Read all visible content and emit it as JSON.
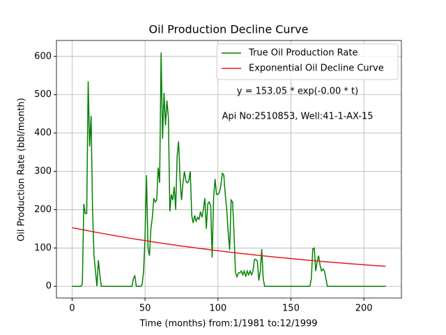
{
  "chart_data": {
    "type": "line",
    "title": "Oil Production Decline Curve",
    "xlabel": "Time (months) from:1/1981 to:12/1999",
    "ylabel": "Oil Production Rate (bbl/month)",
    "annotations": [
      "y = 153.05 * exp(-0.00 * t)",
      "Api No:2510853, Well:41-1-AX-15"
    ],
    "xlim": [
      -10.75,
      225.75
    ],
    "xticks": [
      0,
      50,
      100,
      150,
      200
    ],
    "ylim": [
      -30.55,
      641.55
    ],
    "yticks": [
      0,
      100,
      200,
      300,
      400,
      500,
      600
    ],
    "grid": true,
    "legend": "upper right",
    "series": [
      {
        "name": "True Oil Production Rate",
        "color": "#008000",
        "x": [
          0,
          1,
          2,
          3,
          4,
          5,
          6,
          7,
          8,
          9,
          10,
          11,
          12,
          13,
          14,
          15,
          16,
          17,
          18,
          19,
          20,
          21,
          22,
          23,
          24,
          25,
          26,
          27,
          28,
          29,
          30,
          31,
          32,
          33,
          34,
          35,
          36,
          37,
          38,
          39,
          40,
          41,
          42,
          43,
          44,
          45,
          46,
          47,
          48,
          49,
          50,
          51,
          52,
          53,
          54,
          55,
          56,
          57,
          58,
          59,
          60,
          61,
          62,
          63,
          64,
          65,
          66,
          67,
          68,
          69,
          70,
          71,
          72,
          73,
          74,
          75,
          76,
          77,
          78,
          79,
          80,
          81,
          82,
          83,
          84,
          85,
          86,
          87,
          88,
          89,
          90,
          91,
          92,
          93,
          94,
          95,
          96,
          97,
          98,
          99,
          100,
          101,
          102,
          103,
          104,
          105,
          106,
          107,
          108,
          109,
          110,
          111,
          112,
          113,
          114,
          115,
          116,
          117,
          118,
          119,
          120,
          121,
          122,
          123,
          124,
          125,
          126,
          127,
          128,
          129,
          130,
          131,
          132,
          133,
          134,
          135,
          136,
          137,
          138,
          139,
          140,
          141,
          142,
          143,
          144,
          145,
          146,
          147,
          148,
          149,
          150,
          151,
          152,
          153,
          154,
          155,
          156,
          157,
          158,
          159,
          160,
          161,
          162,
          163,
          164,
          165,
          166,
          167,
          168,
          169,
          170,
          171,
          172,
          173,
          174,
          175,
          176,
          177,
          178,
          179,
          180,
          181,
          182,
          183,
          184,
          185,
          186,
          187,
          188,
          189,
          190,
          191,
          192,
          193,
          194,
          195,
          196,
          197,
          198,
          199,
          200,
          201,
          202,
          203,
          204,
          205,
          206,
          207,
          208,
          209,
          210,
          211,
          212,
          213,
          214,
          215
        ],
        "values": [
          0,
          0,
          0,
          0,
          0,
          0,
          0,
          5,
          215,
          190,
          190,
          535,
          365,
          445,
          200,
          80,
          40,
          0,
          68,
          30,
          0,
          0,
          0,
          0,
          0,
          0,
          0,
          0,
          0,
          0,
          0,
          0,
          0,
          0,
          0,
          0,
          0,
          0,
          0,
          0,
          0,
          0,
          20,
          27,
          0,
          0,
          0,
          0,
          5,
          40,
          130,
          290,
          100,
          80,
          150,
          180,
          230,
          220,
          225,
          310,
          270,
          610,
          385,
          505,
          420,
          485,
          440,
          195,
          240,
          225,
          260,
          200,
          340,
          378,
          280,
          225,
          270,
          300,
          275,
          270,
          275,
          300,
          185,
          165,
          185,
          170,
          180,
          175,
          195,
          180,
          200,
          230,
          150,
          215,
          220,
          210,
          75,
          230,
          280,
          240,
          240,
          245,
          265,
          295,
          290,
          240,
          200,
          140,
          95,
          225,
          220,
          140,
          35,
          25,
          35,
          35,
          40,
          30,
          40,
          25,
          40,
          30,
          40,
          30,
          40,
          70,
          70,
          65,
          15,
          40,
          97,
          20,
          0,
          0,
          0,
          0,
          0,
          0,
          0,
          0,
          0,
          0,
          0,
          0,
          0,
          0,
          0,
          0,
          0,
          0,
          0,
          0,
          0,
          0,
          0,
          0,
          0,
          0,
          0,
          0,
          0,
          0,
          0,
          0,
          20,
          98,
          100,
          40,
          65,
          80,
          55,
          40,
          45,
          40,
          20,
          0,
          0,
          0,
          0,
          0,
          0,
          0,
          0,
          0,
          0,
          0,
          0,
          0,
          0,
          0,
          0,
          0,
          0,
          0,
          0,
          0,
          0,
          0,
          0,
          0,
          0,
          0,
          0,
          0,
          0,
          0,
          0,
          0,
          0,
          0,
          0,
          0,
          0,
          0,
          0,
          0
        ]
      },
      {
        "name": "Exponential Oil Decline Curve",
        "color": "#e41a1c",
        "x": [
          0,
          5,
          10,
          15,
          20,
          25,
          30,
          35,
          40,
          45,
          50,
          55,
          60,
          65,
          70,
          75,
          80,
          85,
          90,
          95,
          100,
          105,
          110,
          115,
          120,
          125,
          130,
          135,
          140,
          145,
          150,
          155,
          160,
          165,
          170,
          175,
          180,
          185,
          190,
          195,
          200,
          205,
          210,
          215
        ],
        "values": [
          153.05,
          149.27,
          145.59,
          141.99,
          138.49,
          135.07,
          131.73,
          128.48,
          125.31,
          122.21,
          119.19,
          116.25,
          113.38,
          110.58,
          107.85,
          105.19,
          102.59,
          100.06,
          97.59,
          95.18,
          92.83,
          90.54,
          88.3,
          86.12,
          84.0,
          81.92,
          79.9,
          77.93,
          76.0,
          74.12,
          72.29,
          70.51,
          68.77,
          67.07,
          65.41,
          63.8,
          62.22,
          60.68,
          59.19,
          57.72,
          56.3,
          54.91,
          53.55,
          52.23
        ]
      }
    ]
  }
}
